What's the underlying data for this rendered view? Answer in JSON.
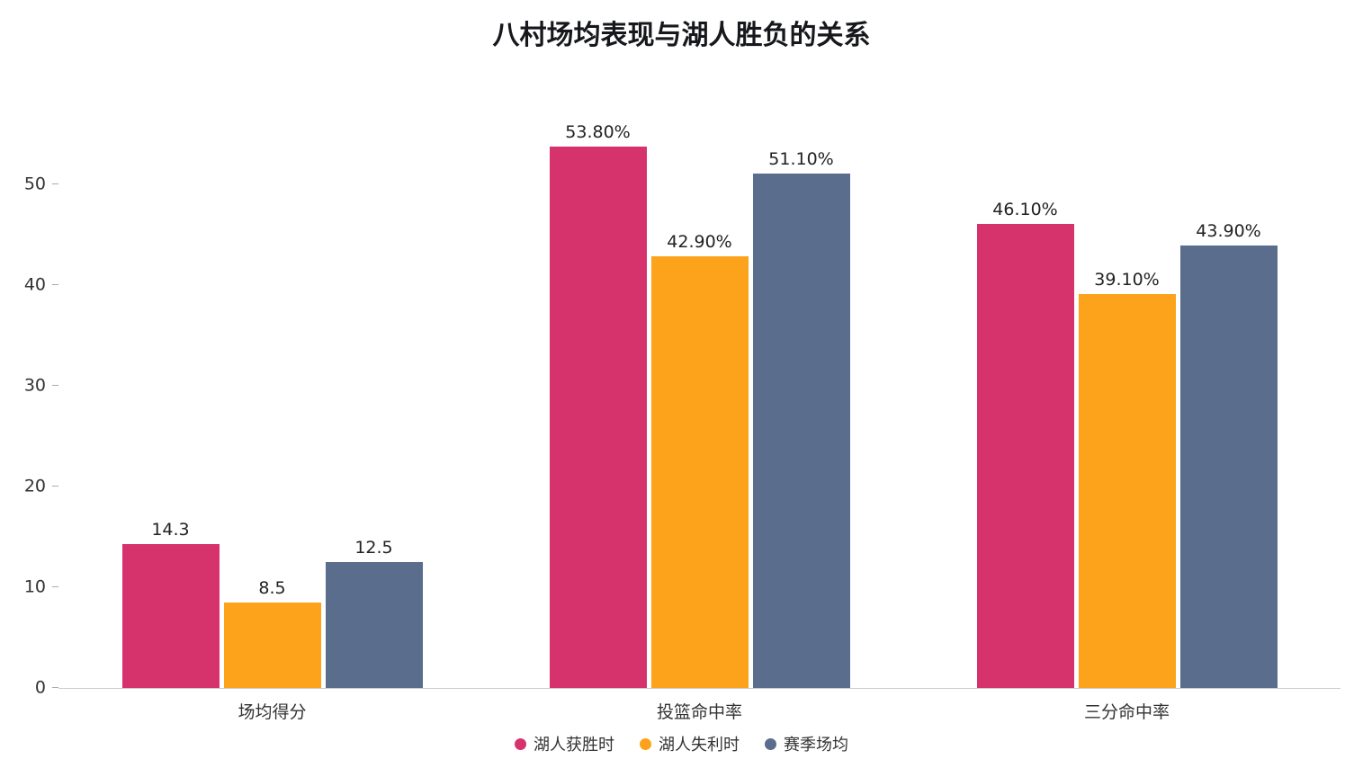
{
  "chart_data": {
    "type": "bar",
    "title": "八村场均表现与湖人胜负的关系",
    "categories": [
      "场均得分",
      "投篮命中率",
      "三分命中率"
    ],
    "series": [
      {
        "name": "湖人获胜时",
        "color": "#d6336c",
        "values": [
          14.3,
          53.8,
          46.1
        ],
        "labels": [
          "14.3",
          "53.80%",
          "46.10%"
        ]
      },
      {
        "name": "湖人失利时",
        "color": "#fca21b",
        "values": [
          8.5,
          42.9,
          39.1
        ],
        "labels": [
          "8.5",
          "42.90%",
          "39.10%"
        ]
      },
      {
        "name": "赛季场均",
        "color": "#5a6d8c",
        "values": [
          12.5,
          51.1,
          43.9
        ],
        "labels": [
          "12.5",
          "51.10%",
          "43.90%"
        ]
      }
    ],
    "yticks": [
      0,
      10,
      20,
      30,
      40,
      50
    ],
    "ylim": [
      0,
      56
    ],
    "xlabel": "",
    "ylabel": "",
    "grid": false,
    "legend_position": "bottom"
  }
}
